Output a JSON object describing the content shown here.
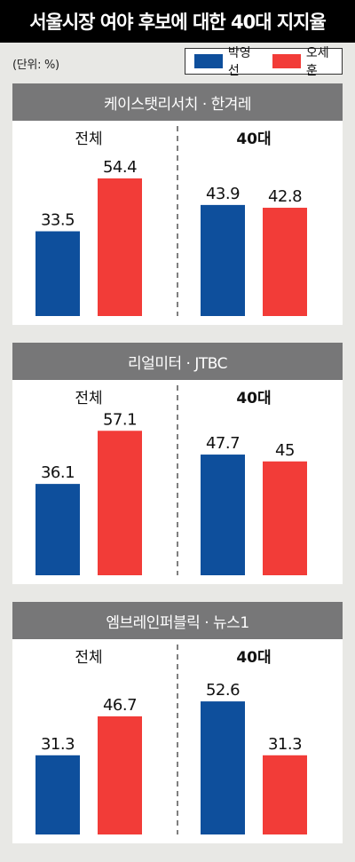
{
  "title": "서울시장 여야 후보에 대한 40대 지지율",
  "unit_label": "(단위: %)",
  "colors": {
    "park": "#0e4f9c",
    "oh": "#f23c38"
  },
  "legend": [
    {
      "name": "박영선",
      "color": "#0e4f9c",
      "icon": "blue-swatch"
    },
    {
      "name": "오세훈",
      "color": "#f23c38",
      "icon": "red-swatch"
    }
  ],
  "chart_data": [
    {
      "type": "bar",
      "title": "케이스탯리서치 · 한겨레",
      "categories": [
        "전체",
        "40대"
      ],
      "series": [
        {
          "name": "박영선",
          "values": [
            33.5,
            43.9
          ]
        },
        {
          "name": "오세훈",
          "values": [
            54.4,
            42.8
          ]
        }
      ],
      "value_labels": [
        [
          "33.5",
          "43.9"
        ],
        [
          "54.4",
          "42.8"
        ]
      ]
    },
    {
      "type": "bar",
      "title": "리얼미터 · JTBC",
      "categories": [
        "전체",
        "40대"
      ],
      "series": [
        {
          "name": "박영선",
          "values": [
            36.1,
            47.7
          ]
        },
        {
          "name": "오세훈",
          "values": [
            57.1,
            45
          ]
        }
      ],
      "value_labels": [
        [
          "36.1",
          "47.7"
        ],
        [
          "57.1",
          "45"
        ]
      ]
    },
    {
      "type": "bar",
      "title": "엠브레인퍼블릭 · 뉴스1",
      "categories": [
        "전체",
        "40대"
      ],
      "series": [
        {
          "name": "박영선",
          "values": [
            31.3,
            52.6
          ]
        },
        {
          "name": "오세훈",
          "values": [
            46.7,
            31.3
          ]
        }
      ],
      "value_labels": [
        [
          "31.3",
          "52.6"
        ],
        [
          "46.7",
          "31.3"
        ]
      ]
    }
  ]
}
